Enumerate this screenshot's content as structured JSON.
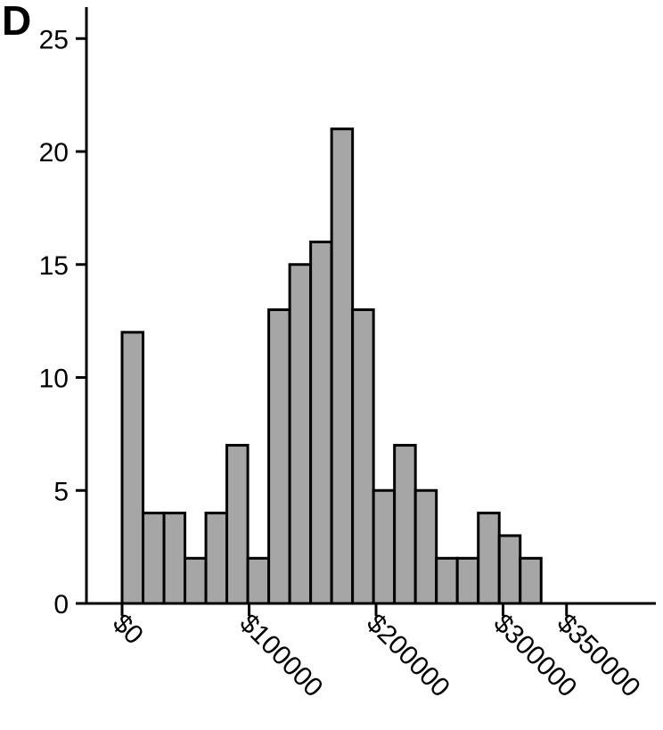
{
  "panel_label": "D",
  "chart_data": {
    "type": "bar",
    "title": "",
    "xlabel": "",
    "ylabel": "",
    "ylim": [
      0,
      26
    ],
    "xlim": [
      -10000,
      410000
    ],
    "yticks": [
      0,
      5,
      10,
      15,
      20,
      25
    ],
    "xticks": [
      {
        "value": 0,
        "label": "$0"
      },
      {
        "value": 100000,
        "label": "$100000"
      },
      {
        "value": 200000,
        "label": "$200000"
      },
      {
        "value": 300000,
        "label": "$300000"
      },
      {
        "value": 350000,
        "label": "$350000"
      }
    ],
    "bin_edges": [
      0,
      16500,
      33000,
      49500,
      66000,
      82500,
      99000,
      115500,
      132000,
      148500,
      165000,
      181500,
      198000,
      214500,
      231000,
      247500,
      264000,
      280500,
      297000,
      313500,
      330000
    ],
    "values": [
      12,
      4,
      4,
      2,
      4,
      7,
      2,
      13,
      15,
      16,
      21,
      13,
      5,
      7,
      5,
      2,
      2,
      4,
      3,
      2
    ],
    "bar_color": "#a6a6a6",
    "edge_color": "#000000",
    "grid": false
  }
}
